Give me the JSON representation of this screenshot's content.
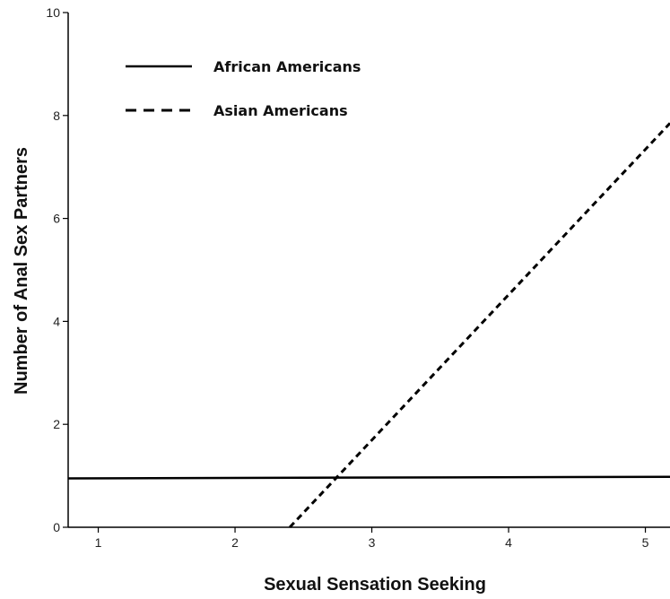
{
  "chart_data": {
    "type": "line",
    "title": "",
    "xlabel": "Sexual Sensation Seeking",
    "ylabel": "Number of Anal Sex Partners",
    "xlim": [
      0.78,
      5.18
    ],
    "ylim": [
      0,
      10
    ],
    "x_ticks": [
      "1",
      "2",
      "3",
      "4",
      "5"
    ],
    "y_ticks": [
      "0",
      "2",
      "4",
      "6",
      "8",
      "10"
    ],
    "grid": false,
    "legend_position": "top-left",
    "series": [
      {
        "name": "African Americans",
        "style": "solid",
        "color": "#000000",
        "x": [
          0.78,
          5.18
        ],
        "y": [
          0.95,
          0.98
        ]
      },
      {
        "name": "Asian Americans",
        "style": "dashed",
        "color": "#000000",
        "x": [
          2.4,
          5.18
        ],
        "y": [
          0.0,
          7.85
        ]
      }
    ]
  }
}
